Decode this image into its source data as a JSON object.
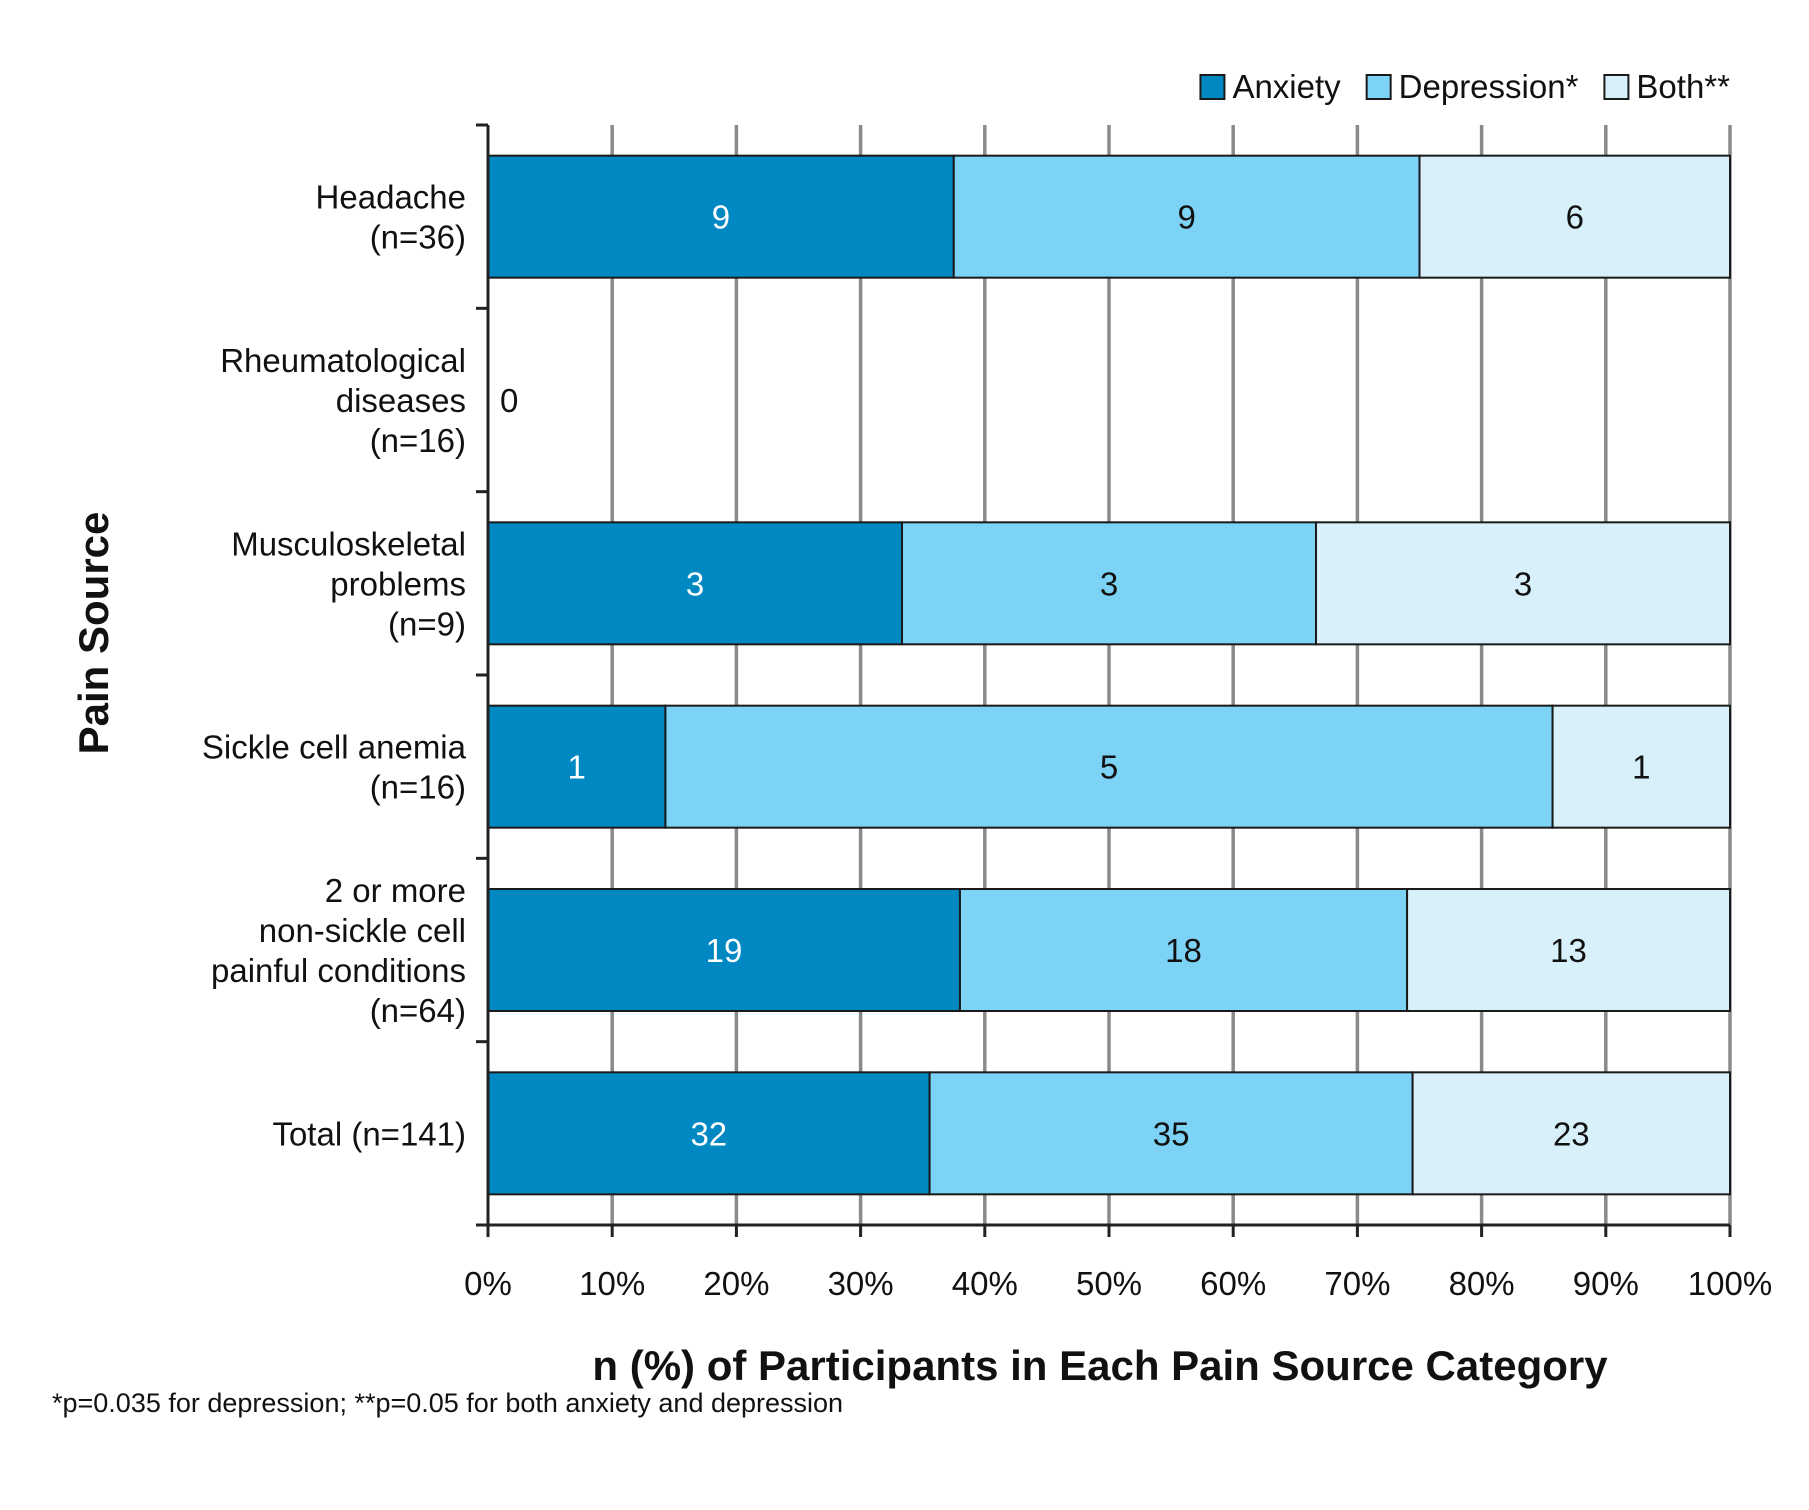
{
  "chart_data": {
    "type": "bar",
    "orientation": "horizontal",
    "stacked": true,
    "percent_stacked": true,
    "categories": [
      [
        "Headache",
        "(n=36)"
      ],
      [
        "Rheumatological",
        "diseases",
        "(n=16)"
      ],
      [
        "Musculoskeletal",
        "problems",
        "(n=9)"
      ],
      [
        "Sickle cell anemia",
        "(n=16)"
      ],
      [
        "2 or more",
        "non-sickle cell",
        "painful conditions",
        "(n=64)"
      ],
      [
        "Total (n=141)"
      ]
    ],
    "series": [
      {
        "name": "Anxiety",
        "color": "#0088c2",
        "values": [
          9,
          0,
          3,
          1,
          19,
          32
        ]
      },
      {
        "name": "Depression*",
        "color": "#7dd3f5",
        "values": [
          9,
          0,
          3,
          5,
          18,
          35
        ]
      },
      {
        "name": "Both**",
        "color": "#d8f0fa",
        "values": [
          6,
          0,
          3,
          1,
          13,
          23
        ]
      }
    ],
    "zero_label": "0",
    "xlabel": "n (%) of Participants in Each Pain Source Category",
    "ylabel": "Pain Source",
    "xlim": [
      0,
      100
    ],
    "xticks": [
      "0%",
      "10%",
      "20%",
      "30%",
      "40%",
      "50%",
      "60%",
      "70%",
      "80%",
      "90%",
      "100%"
    ],
    "grid": "vertical",
    "legend": "top-right"
  },
  "footnote": "*p=0.035 for depression; **p=0.05 for both anxiety and depression"
}
